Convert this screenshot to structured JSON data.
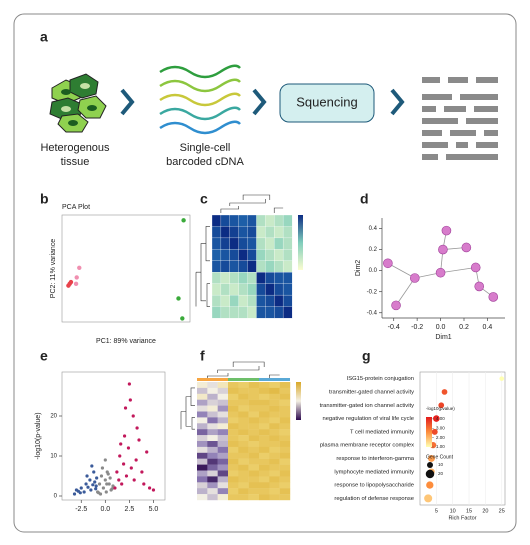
{
  "panel_a": {
    "label": "a",
    "tissue": [
      "Heterogenous",
      "tissue"
    ],
    "cdna": [
      "Single-cell",
      "barcoded cDNA"
    ],
    "box": "Squencing"
  },
  "chart_data": [
    {
      "type": "scatter",
      "label": "b",
      "title": "PCA Plot",
      "xlabel": "PC1: 89% variance",
      "ylabel": "PC2: 11% variance",
      "xlim": [
        -10,
        10
      ],
      "ylim": [
        -1.5,
        1.5
      ],
      "series": [
        {
          "color": "#e8424b",
          "x": [
            -8.8,
            -8.6,
            -9.0
          ],
          "values": [
            -0.43,
            -0.38,
            -0.48
          ]
        },
        {
          "color": "#f08fb0",
          "x": [
            -7.3,
            -7.7,
            -7.8
          ],
          "values": [
            0.02,
            -0.25,
            -0.43
          ]
        },
        {
          "color": "#3aaa3a",
          "x": [
            9.0,
            8.2,
            8.8
          ],
          "values": [
            1.35,
            -0.84,
            -1.4
          ]
        }
      ]
    },
    {
      "type": "heatmap",
      "label": "c",
      "clim": [
        0.85,
        1
      ],
      "colors": [
        "#fbfdd0",
        "#7fcdbb",
        "#1d5fa8",
        "#0c2c84"
      ],
      "matrix": [
        [
          1,
          0.97,
          0.96,
          0.95,
          0.96,
          0.88,
          0.87,
          0.88,
          0.89
        ],
        [
          0.97,
          1,
          0.98,
          0.96,
          0.97,
          0.87,
          0.88,
          0.87,
          0.88
        ],
        [
          0.96,
          0.98,
          1,
          0.97,
          0.96,
          0.88,
          0.87,
          0.89,
          0.88
        ],
        [
          0.95,
          0.96,
          0.97,
          1,
          0.97,
          0.89,
          0.88,
          0.87,
          0.88
        ],
        [
          0.96,
          0.97,
          0.96,
          0.97,
          1,
          0.88,
          0.89,
          0.88,
          0.87
        ],
        [
          0.88,
          0.87,
          0.88,
          0.89,
          0.88,
          1,
          0.97,
          0.96,
          0.96
        ],
        [
          0.87,
          0.88,
          0.87,
          0.88,
          0.89,
          0.97,
          1,
          0.97,
          0.96
        ],
        [
          0.88,
          0.87,
          0.89,
          0.87,
          0.88,
          0.96,
          0.97,
          1,
          0.97
        ],
        [
          0.89,
          0.88,
          0.88,
          0.88,
          0.87,
          0.96,
          0.96,
          0.97,
          1
        ]
      ]
    },
    {
      "type": "scatter",
      "label": "d",
      "xlabel": "Dim1",
      "ylabel": "Dim2",
      "xlim": [
        -0.5,
        0.55
      ],
      "ylim": [
        -0.45,
        0.5
      ],
      "xticks": [
        -0.4,
        -0.2,
        {
          "value": 0,
          "label": "0.0"
        },
        0.2,
        0.4
      ],
      "yticks": [
        -0.4,
        -0.2,
        {
          "value": 0,
          "label": "0.0"
        },
        0.2,
        0.4
      ],
      "series": [
        {
          "color": "#d77ccb",
          "x": [
            -0.45,
            -0.38,
            -0.22,
            0.0,
            0.05,
            0.02,
            0.22,
            0.33,
            0.45,
            0.3
          ],
          "values": [
            0.07,
            -0.33,
            -0.07,
            -0.02,
            0.38,
            0.2,
            0.22,
            -0.15,
            -0.25,
            0.03
          ]
        }
      ]
    },
    {
      "type": "scatter",
      "label": "e",
      "ylabel": "-log10(p-value)",
      "xlim": [
        -4.5,
        6.2
      ],
      "ylim": [
        -1,
        31
      ],
      "xticks": [
        -2.5,
        {
          "value": 0,
          "label": "0.0"
        },
        2.5,
        {
          "value": 5,
          "label": "5.0"
        }
      ],
      "yticks": [
        0,
        10,
        20
      ],
      "series": [
        {
          "color": "#3b5b9a",
          "x": [
            -3.2,
            -2.8,
            -2.5,
            -2.2,
            -2.0,
            -1.8,
            -1.6,
            -1.5,
            -1.3,
            -1.2,
            -1.1,
            -1.0,
            -0.9,
            -2.6,
            -1.9,
            -1.4,
            -0.95,
            -3.0
          ],
          "values": [
            0.5,
            1.2,
            2.0,
            1.0,
            3.0,
            2.2,
            4.0,
            1.5,
            2.8,
            6.0,
            3.5,
            1.8,
            4.5,
            0.8,
            5.0,
            7.5,
            2.5,
            1.5
          ]
        },
        {
          "color": "#8a8a8a",
          "x": [
            -0.8,
            -0.6,
            -0.4,
            -0.2,
            0,
            0.2,
            0.4,
            0.6,
            0.8,
            -0.5,
            0.1,
            0.5,
            -0.3,
            0.3,
            -0.7,
            0.7,
            0,
            0.15
          ],
          "values": [
            1,
            3,
            5,
            2,
            4,
            6,
            3,
            1.5,
            2.5,
            0.5,
            1,
            4.5,
            7,
            5.5,
            0.8,
            1.8,
            9,
            3
          ]
        },
        {
          "color": "#c2185b",
          "x": [
            1,
            1.2,
            1.4,
            1.5,
            1.7,
            1.9,
            2.0,
            2.2,
            2.4,
            2.5,
            2.7,
            2.9,
            3.0,
            3.2,
            3.5,
            3.8,
            4.0,
            4.3,
            4.6,
            5.0,
            2.6,
            3.3,
            1.6,
            2.1
          ],
          "values": [
            2,
            6,
            4,
            10,
            3,
            8,
            15,
            5,
            12,
            28,
            7,
            20,
            4,
            9,
            14,
            6,
            3,
            11,
            2,
            1.5,
            24,
            17,
            13,
            22
          ]
        }
      ]
    },
    {
      "type": "heatmap",
      "label": "f",
      "clim": [
        -2,
        1
      ],
      "colors": [
        "#2d0a4e",
        "#8c7bb5",
        "#f3f0e4",
        "#f0d77a",
        "#d9a827"
      ],
      "matrix": [
        [
          -0.4,
          -0.6,
          -0.2,
          0.5,
          0.4,
          0.6,
          0.5,
          0.4,
          0.6
        ],
        [
          -0.8,
          -0.5,
          -0.7,
          0.6,
          0.5,
          0.5,
          0.6,
          0.7,
          0.5
        ],
        [
          -0.3,
          -0.9,
          -0.5,
          0.4,
          0.6,
          0.5,
          0.4,
          0.5,
          0.6
        ],
        [
          -1.0,
          -0.7,
          -0.8,
          0.5,
          0.5,
          0.6,
          0.6,
          0.5,
          0.4
        ],
        [
          -0.6,
          -0.4,
          -1.1,
          0.6,
          0.4,
          0.5,
          0.5,
          0.6,
          0.5
        ],
        [
          -1.2,
          -0.8,
          -0.6,
          0.5,
          0.6,
          0.4,
          0.6,
          0.5,
          0.5
        ],
        [
          -0.5,
          -1.3,
          -0.9,
          0.4,
          0.5,
          0.6,
          0.5,
          0.4,
          0.6
        ],
        [
          -0.9,
          -0.6,
          -0.4,
          0.6,
          0.5,
          0.5,
          0.4,
          0.6,
          0.5
        ],
        [
          -1.4,
          -1.0,
          -1.2,
          0.5,
          0.6,
          0.5,
          0.6,
          0.5,
          0.4
        ],
        [
          -0.7,
          -0.5,
          -0.8,
          0.5,
          0.4,
          0.6,
          0.5,
          0.6,
          0.5
        ],
        [
          -1.1,
          -1.5,
          -0.9,
          0.6,
          0.5,
          0.4,
          0.5,
          0.5,
          0.6
        ],
        [
          -0.6,
          -0.9,
          -1.3,
          0.4,
          0.6,
          0.5,
          0.6,
          0.4,
          0.5
        ],
        [
          -1.6,
          -1.2,
          -1.0,
          0.5,
          0.5,
          0.6,
          0.4,
          0.5,
          0.6
        ],
        [
          -0.8,
          -1.7,
          -1.4,
          0.6,
          0.4,
          0.5,
          0.5,
          0.6,
          0.4
        ],
        [
          -1.9,
          -1.4,
          -1.1,
          0.5,
          0.6,
          0.4,
          0.6,
          0.5,
          0.5
        ],
        [
          -1.0,
          -0.7,
          -1.6,
          0.4,
          0.5,
          0.6,
          0.5,
          0.4,
          0.6
        ],
        [
          -1.3,
          -1.8,
          -0.9,
          0.6,
          0.5,
          0.5,
          0.4,
          0.6,
          0.5
        ],
        [
          -0.7,
          -1.1,
          -0.6,
          0.5,
          0.4,
          0.6,
          0.6,
          0.5,
          0.4
        ],
        [
          -0.9,
          -0.6,
          -1.2,
          0.4,
          0.6,
          0.5,
          0.5,
          0.4,
          0.6
        ],
        [
          -0.5,
          -0.8,
          -0.4,
          0.5,
          0.5,
          0.4,
          0.6,
          0.5,
          0.5
        ]
      ]
    },
    {
      "type": "bubble",
      "label": "g",
      "xlabel": "Rich Factor",
      "xlim": [
        0,
        26
      ],
      "xticks": [
        5,
        10,
        15,
        20,
        25
      ],
      "categories": [
        "ISG15-protein conjugation",
        "transmitter-gated channel activity",
        "transmitter-gated ion channel activity",
        "negative regulation of viral life cycle",
        "T cell mediated immunity",
        "plasma membrane receptor complex",
        "response to interferon-gamma",
        "lymphocyte mediated immunity",
        "response to lipopolysaccharide",
        "regulation of defense response"
      ],
      "values": [
        25,
        7.5,
        6.5,
        5,
        4.5,
        4,
        3.5,
        3.5,
        3,
        2.5
      ],
      "sizes": [
        6,
        9,
        9,
        12,
        10,
        11,
        13,
        12,
        15,
        18
      ],
      "pvalues": [
        1.0,
        3.4,
        3.6,
        4.1,
        3.5,
        3.0,
        2.4,
        2.1,
        2.6,
        1.8
      ],
      "color_title": "-log10(pvalue)",
      "clim": [
        1,
        4.2
      ],
      "colors": [
        "#ffffb2",
        "#fd8d3c",
        "#e31a1c"
      ],
      "cticks": [
        {
          "value": 4,
          "label": "4.00"
        },
        {
          "value": 3,
          "label": "3.00"
        },
        {
          "value": 2,
          "label": "2.00"
        },
        {
          "value": 1,
          "label": "1.00"
        }
      ],
      "size_title": "Gene Count",
      "size_legend": [
        10,
        20
      ]
    }
  ]
}
